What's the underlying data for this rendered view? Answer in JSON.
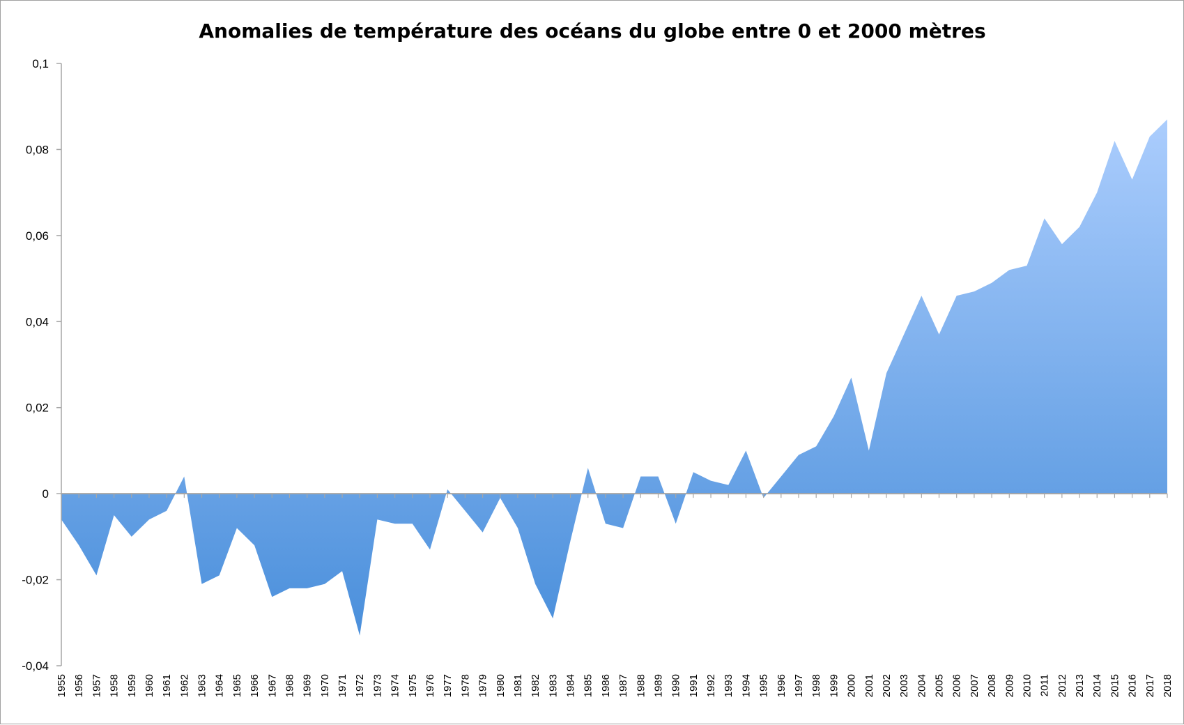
{
  "chart_data": {
    "type": "area",
    "title": "Anomalies de température des océans du globe entre 0 et 2000 mètres",
    "xlabel": "",
    "ylabel": "",
    "ylim": [
      -0.04,
      0.1
    ],
    "yticks": [
      "-0,04",
      "-0,02",
      "0",
      "0,02",
      "0,04",
      "0,06",
      "0,08",
      "0,1"
    ],
    "ytick_values": [
      -0.04,
      -0.02,
      0,
      0.02,
      0.04,
      0.06,
      0.08,
      0.1
    ],
    "grid": false,
    "legend": "none",
    "colors": {
      "fill_top": "#abcdfd",
      "fill_bottom": "#4a8fdb",
      "axis": "#a6a6a6"
    },
    "x": [
      1955,
      1956,
      1957,
      1958,
      1959,
      1960,
      1961,
      1962,
      1963,
      1964,
      1965,
      1966,
      1967,
      1968,
      1969,
      1970,
      1971,
      1972,
      1973,
      1974,
      1975,
      1976,
      1977,
      1978,
      1979,
      1980,
      1981,
      1982,
      1983,
      1984,
      1985,
      1986,
      1987,
      1988,
      1989,
      1990,
      1991,
      1992,
      1993,
      1994,
      1995,
      1996,
      1997,
      1998,
      1999,
      2000,
      2001,
      2002,
      2003,
      2004,
      2005,
      2006,
      2007,
      2008,
      2009,
      2010,
      2011,
      2012,
      2013,
      2014,
      2015,
      2016,
      2017,
      2018
    ],
    "values": [
      -0.006,
      -0.012,
      -0.019,
      -0.005,
      -0.01,
      -0.006,
      -0.004,
      0.004,
      -0.021,
      -0.019,
      -0.008,
      -0.012,
      -0.024,
      -0.022,
      -0.022,
      -0.021,
      -0.018,
      -0.033,
      -0.006,
      -0.007,
      -0.007,
      -0.013,
      0.001,
      -0.004,
      -0.009,
      -0.001,
      -0.008,
      -0.021,
      -0.029,
      -0.011,
      0.006,
      -0.007,
      -0.008,
      0.004,
      0.004,
      -0.007,
      0.005,
      0.003,
      0.002,
      0.01,
      -0.001,
      0.004,
      0.009,
      0.011,
      0.018,
      0.027,
      0.01,
      0.028,
      0.037,
      0.046,
      0.037,
      0.046,
      0.047,
      0.049,
      0.052,
      0.053,
      0.064,
      0.058,
      0.062,
      0.07,
      0.082,
      0.073,
      0.083,
      0.087
    ]
  }
}
